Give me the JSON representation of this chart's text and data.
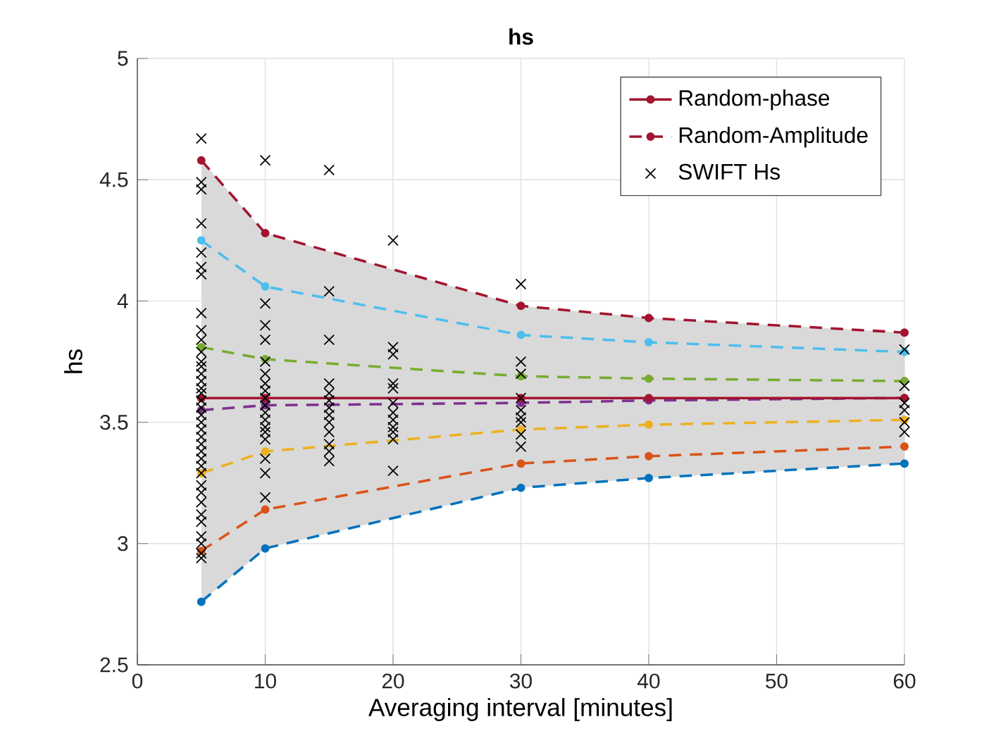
{
  "chart_data": {
    "type": "line",
    "title": "hs",
    "xlabel": "Averaging interval [minutes]",
    "ylabel": "hs",
    "xlim": [
      0,
      60
    ],
    "xticks": [
      0,
      10,
      20,
      30,
      40,
      50,
      60
    ],
    "ylim": [
      2.5,
      5
    ],
    "yticks": [
      2.5,
      3,
      3.5,
      4,
      4.5,
      5
    ],
    "grid": true,
    "legend": "top right",
    "series": [
      {
        "name": "Random-phase",
        "line_style": "solid",
        "marker": "circle",
        "color": "#a2142f",
        "x": [
          5,
          10,
          30,
          40,
          60
        ],
        "values": [
          3.6,
          3.6,
          3.6,
          3.6,
          3.6
        ]
      },
      {
        "name": "Random-Amplitude",
        "line_style": "dashed",
        "marker": "circle",
        "color": "#a2142f",
        "x": [
          5,
          10,
          30,
          40,
          60
        ],
        "values": [
          4.58,
          4.28,
          3.98,
          3.93,
          3.87
        ],
        "lower": [
          2.76,
          2.98,
          3.23,
          3.27,
          3.33
        ],
        "upper": [
          4.58,
          4.28,
          3.98,
          3.93,
          3.87
        ]
      },
      {
        "line_style": "dashed",
        "marker": "circle",
        "color": "#4dbeee",
        "x": [
          5,
          10,
          30,
          40,
          60
        ],
        "values": [
          4.25,
          4.06,
          3.86,
          3.83,
          3.79
        ]
      },
      {
        "line_style": "dashed",
        "marker": "circle",
        "color": "#77ac30",
        "x": [
          5,
          10,
          30,
          40,
          60
        ],
        "values": [
          3.81,
          3.76,
          3.69,
          3.68,
          3.67
        ]
      },
      {
        "line_style": "dashed",
        "marker": "circle",
        "color": "#7e2f8e",
        "x": [
          5,
          10,
          30,
          40,
          60
        ],
        "values": [
          3.55,
          3.57,
          3.58,
          3.59,
          3.6
        ]
      },
      {
        "line_style": "dashed",
        "marker": "circle",
        "color": "#edb120",
        "x": [
          5,
          10,
          30,
          40,
          60
        ],
        "values": [
          3.29,
          3.38,
          3.47,
          3.49,
          3.51
        ]
      },
      {
        "line_style": "dashed",
        "marker": "circle",
        "color": "#d95319",
        "x": [
          5,
          10,
          30,
          40,
          60
        ],
        "values": [
          2.97,
          3.14,
          3.33,
          3.36,
          3.4
        ]
      },
      {
        "line_style": "dashed",
        "marker": "circle",
        "color": "#0072bd",
        "x": [
          5,
          10,
          30,
          40,
          60
        ],
        "values": [
          2.76,
          2.98,
          3.23,
          3.27,
          3.33
        ]
      },
      {
        "name": "SWIFT Hs",
        "type": "scatter",
        "marker": "cross",
        "color": "#000000",
        "x": [
          5,
          5,
          5,
          5,
          5,
          5,
          5,
          5,
          5,
          5,
          5,
          5,
          5,
          5,
          5,
          5,
          5,
          5,
          5,
          5,
          5,
          5,
          5,
          5,
          5,
          5,
          5,
          5,
          5,
          5,
          5,
          5,
          5,
          5,
          5,
          5,
          5,
          10,
          10,
          10,
          10,
          10,
          10,
          10,
          10,
          10,
          10,
          10,
          10,
          10,
          10,
          10,
          10,
          10,
          10,
          15,
          15,
          15,
          15,
          15,
          15,
          15,
          15,
          15,
          15,
          15,
          15,
          15,
          20,
          20,
          20,
          20,
          20,
          20,
          20,
          20,
          20,
          20,
          20,
          20,
          30,
          30,
          30,
          30,
          30,
          30,
          30,
          30,
          30,
          60,
          60,
          60,
          60,
          60,
          60
        ],
        "values": [
          4.67,
          4.49,
          4.46,
          4.32,
          4.2,
          4.14,
          4.11,
          3.95,
          3.88,
          3.84,
          3.79,
          3.75,
          3.73,
          3.7,
          3.67,
          3.64,
          3.62,
          3.59,
          3.56,
          3.53,
          3.5,
          3.47,
          3.44,
          3.41,
          3.38,
          3.35,
          3.32,
          3.29,
          3.24,
          3.21,
          3.17,
          3.12,
          3.09,
          3.03,
          3.0,
          2.96,
          2.94,
          4.58,
          3.99,
          3.9,
          3.84,
          3.75,
          3.7,
          3.66,
          3.63,
          3.6,
          3.57,
          3.54,
          3.51,
          3.48,
          3.46,
          3.43,
          3.35,
          3.29,
          3.19,
          4.54,
          4.04,
          3.84,
          3.66,
          3.62,
          3.59,
          3.56,
          3.53,
          3.5,
          3.46,
          3.41,
          3.38,
          3.34,
          4.25,
          3.81,
          3.78,
          3.66,
          3.64,
          3.58,
          3.54,
          3.51,
          3.48,
          3.46,
          3.43,
          3.3,
          4.07,
          3.75,
          3.7,
          3.6,
          3.55,
          3.52,
          3.5,
          3.45,
          3.4,
          3.8,
          3.65,
          3.58,
          3.55,
          3.5,
          3.46
        ]
      }
    ]
  }
}
